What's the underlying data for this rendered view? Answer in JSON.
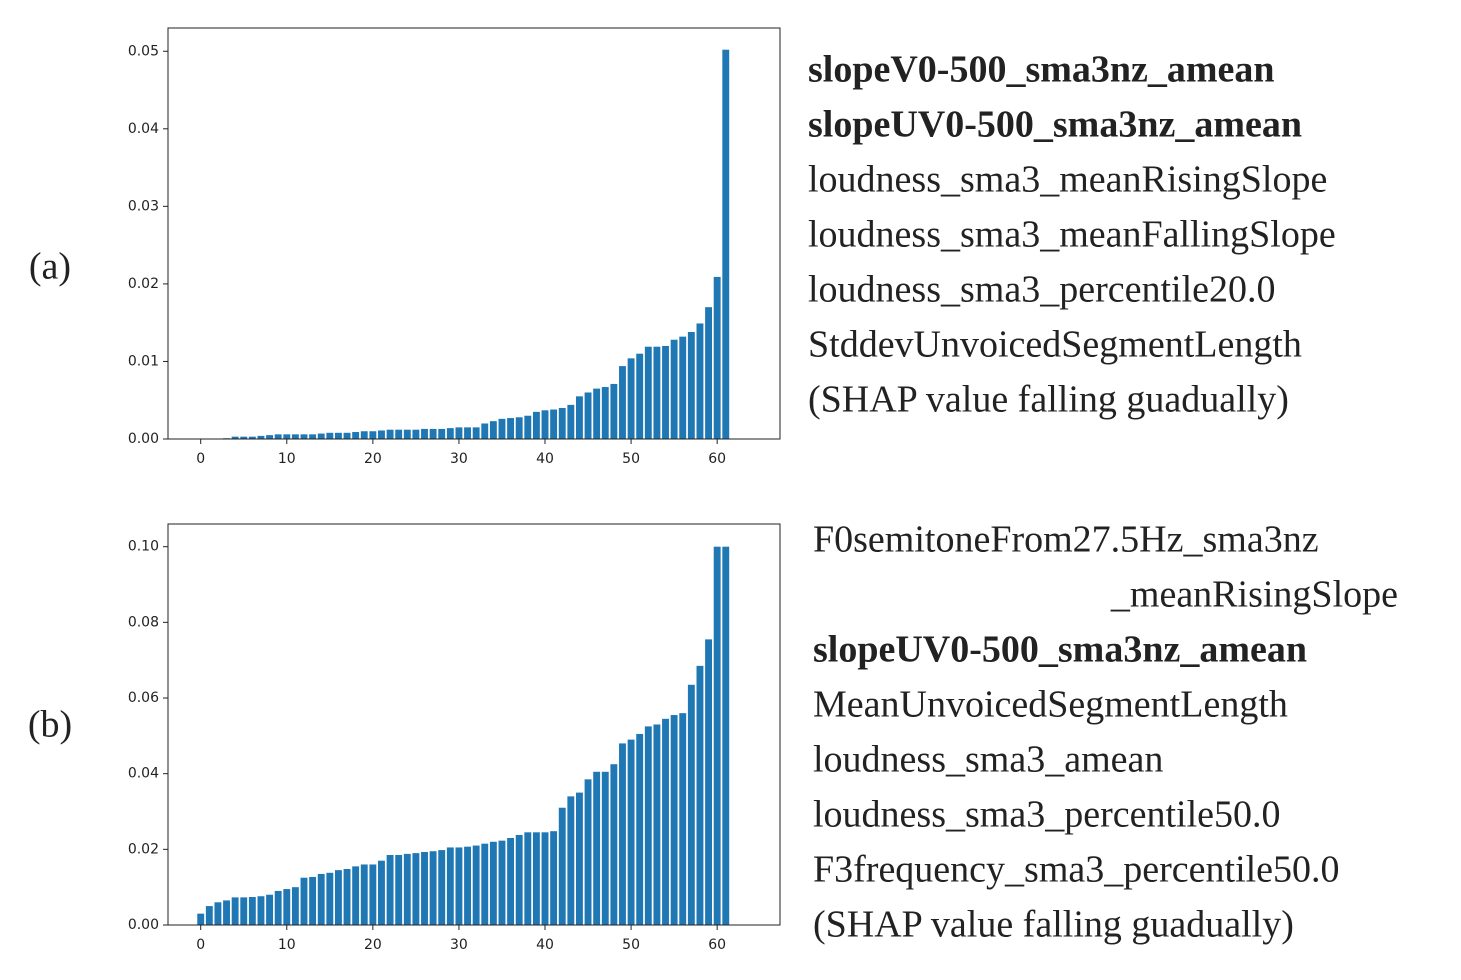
{
  "chart_data": [
    {
      "type": "bar",
      "color": "#1f77b4",
      "x": [
        0,
        1,
        2,
        3,
        4,
        5,
        6,
        7,
        8,
        9,
        10,
        11,
        12,
        13,
        14,
        15,
        16,
        17,
        18,
        19,
        20,
        21,
        22,
        23,
        24,
        25,
        26,
        27,
        28,
        29,
        30,
        31,
        32,
        33,
        34,
        35,
        36,
        37,
        38,
        39,
        40,
        41,
        42,
        43,
        44,
        45,
        46,
        47,
        48,
        49,
        50,
        51,
        52,
        53,
        54,
        55,
        56,
        57,
        58,
        59,
        60,
        61
      ],
      "values": [
        0,
        0,
        0,
        0.0001,
        0.0003,
        0.0003,
        0.0003,
        0.0004,
        0.0005,
        0.0006,
        0.0006,
        0.0006,
        0.0006,
        0.0006,
        0.0007,
        0.0008,
        0.0008,
        0.0008,
        0.0009,
        0.001,
        0.001,
        0.0011,
        0.0012,
        0.0012,
        0.0012,
        0.0012,
        0.0013,
        0.0013,
        0.0013,
        0.0014,
        0.0015,
        0.0015,
        0.0015,
        0.002,
        0.0023,
        0.0026,
        0.0027,
        0.0028,
        0.003,
        0.0035,
        0.0037,
        0.0038,
        0.004,
        0.0044,
        0.0055,
        0.006,
        0.0065,
        0.0067,
        0.0071,
        0.0094,
        0.0104,
        0.011,
        0.0119,
        0.0119,
        0.012,
        0.0128,
        0.0132,
        0.0138,
        0.0149,
        0.017,
        0.0209,
        0.0502
      ],
      "xlim": [
        -3.8,
        67.3
      ],
      "xticks": [
        0,
        10,
        20,
        30,
        40,
        50,
        60
      ],
      "ylim": [
        0,
        0.053
      ],
      "yticks": [
        {
          "value": 0,
          "label": "0.00"
        },
        {
          "value": 0.01,
          "label": "0.01"
        },
        {
          "value": 0.02,
          "label": "0.02"
        },
        {
          "value": 0.03,
          "label": "0.03"
        },
        {
          "value": 0.04,
          "label": "0.04"
        },
        {
          "value": 0.05,
          "label": "0.05"
        }
      ]
    },
    {
      "type": "bar",
      "color": "#1f77b4",
      "x": [
        0,
        1,
        2,
        3,
        4,
        5,
        6,
        7,
        8,
        9,
        10,
        11,
        12,
        13,
        14,
        15,
        16,
        17,
        18,
        19,
        20,
        21,
        22,
        23,
        24,
        25,
        26,
        27,
        28,
        29,
        30,
        31,
        32,
        33,
        34,
        35,
        36,
        37,
        38,
        39,
        40,
        41,
        42,
        43,
        44,
        45,
        46,
        47,
        48,
        49,
        50,
        51,
        52,
        53,
        54,
        55,
        56,
        57,
        58,
        59,
        60,
        61
      ],
      "values": [
        0.003,
        0.005,
        0.006,
        0.0065,
        0.0073,
        0.0073,
        0.0074,
        0.0076,
        0.008,
        0.009,
        0.0095,
        0.01,
        0.0125,
        0.0127,
        0.0135,
        0.0138,
        0.0145,
        0.0148,
        0.0155,
        0.016,
        0.016,
        0.017,
        0.0185,
        0.0185,
        0.0188,
        0.019,
        0.0193,
        0.0195,
        0.0198,
        0.0205,
        0.0205,
        0.0207,
        0.021,
        0.0215,
        0.022,
        0.0223,
        0.023,
        0.0238,
        0.0245,
        0.0245,
        0.0245,
        0.0248,
        0.031,
        0.034,
        0.035,
        0.0385,
        0.0405,
        0.0405,
        0.0425,
        0.048,
        0.049,
        0.0505,
        0.0525,
        0.053,
        0.0545,
        0.0555,
        0.056,
        0.0635,
        0.0685,
        0.0755,
        0.1,
        0.1
      ],
      "xlim": [
        -3.8,
        67.3
      ],
      "xticks": [
        0,
        10,
        20,
        30,
        40,
        50,
        60
      ],
      "ylim": [
        0,
        0.106
      ],
      "yticks": [
        {
          "value": 0,
          "label": "0.00"
        },
        {
          "value": 0.02,
          "label": "0.02"
        },
        {
          "value": 0.04,
          "label": "0.04"
        },
        {
          "value": 0.06,
          "label": "0.06"
        },
        {
          "value": 0.08,
          "label": "0.08"
        },
        {
          "value": 0.1,
          "label": "0.10"
        }
      ]
    }
  ],
  "panels": [
    {
      "label": "(a)",
      "features": [
        {
          "text": "slopeV0-500_sma3nz_amean",
          "bold": true
        },
        {
          "text": "slopeUV0-500_sma3nz_amean",
          "bold": true
        },
        {
          "text": "loudness_sma3_meanRisingSlope",
          "bold": false
        },
        {
          "text": "loudness_sma3_meanFallingSlope",
          "bold": false
        },
        {
          "text": "loudness_sma3_percentile20.0",
          "bold": false
        },
        {
          "text": "StddevUnvoicedSegmentLength",
          "bold": false
        },
        {
          "text": "(SHAP value falling guadually)",
          "bold": false
        }
      ]
    },
    {
      "label": "(b)",
      "features": [
        {
          "text": "F0semitoneFrom27.5Hz_sma3nz",
          "bold": false
        },
        {
          "text": "_meanRisingSlope",
          "bold": false,
          "align": "right"
        },
        {
          "text": "slopeUV0-500_sma3nz_amean",
          "bold": true
        },
        {
          "text": "MeanUnvoicedSegmentLength",
          "bold": false
        },
        {
          "text": "loudness_sma3_amean",
          "bold": false
        },
        {
          "text": "loudness_sma3_percentile50.0",
          "bold": false
        },
        {
          "text": "F3frequency_sma3_percentile50.0",
          "bold": false
        },
        {
          "text": "(SHAP value falling guadually)",
          "bold": false
        }
      ]
    }
  ]
}
